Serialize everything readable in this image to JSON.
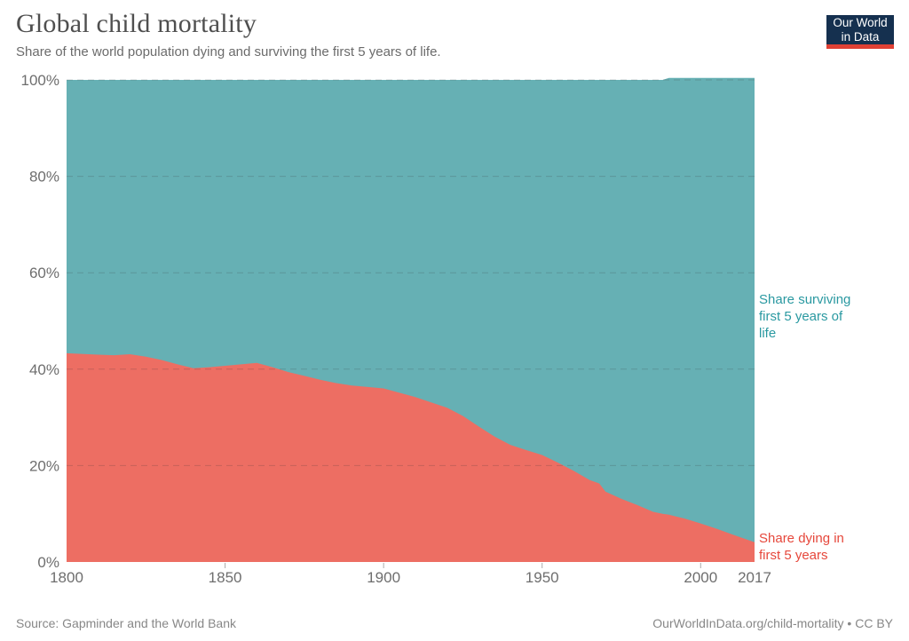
{
  "header": {
    "title": "Global child mortality",
    "subtitle": "Share of the world population dying and surviving the first 5 years of life."
  },
  "logo": {
    "line1": "Our World",
    "line2": "in Data",
    "bg_color": "#15304f",
    "bar_color": "#e04034"
  },
  "chart_data": {
    "type": "area",
    "stacked": true,
    "title": "Global child mortality",
    "xlabel": "",
    "ylabel": "",
    "xlim": [
      1800,
      2017
    ],
    "ylim": [
      0,
      100
    ],
    "grid": "dashed-horizontal",
    "legend_position": "right-annotations",
    "x": [
      1800,
      1810,
      1815,
      1820,
      1825,
      1830,
      1835,
      1840,
      1845,
      1850,
      1855,
      1860,
      1865,
      1870,
      1875,
      1880,
      1885,
      1890,
      1895,
      1900,
      1905,
      1910,
      1915,
      1920,
      1925,
      1930,
      1935,
      1940,
      1945,
      1950,
      1955,
      1960,
      1965,
      1968,
      1970,
      1975,
      1980,
      1985,
      1988,
      1990,
      1995,
      2000,
      2005,
      2010,
      2017
    ],
    "series": [
      {
        "name": "Share dying in first 5 years",
        "color": "#ed6e63",
        "label_color": "#e6473b",
        "values": [
          43.3,
          43.0,
          42.9,
          43.1,
          42.6,
          41.9,
          41.0,
          40.2,
          40.4,
          40.7,
          41.0,
          41.3,
          40.4,
          39.4,
          38.6,
          37.8,
          37.1,
          36.6,
          36.3,
          36.0,
          35.1,
          34.2,
          33.1,
          32.0,
          30.3,
          28.1,
          26.0,
          24.3,
          23.2,
          22.2,
          20.6,
          18.9,
          17.0,
          16.3,
          14.6,
          13.1,
          11.8,
          10.4,
          10.0,
          9.8,
          9.0,
          8.0,
          6.9,
          5.7,
          4.1
        ]
      },
      {
        "name": "Share surviving first 5 years of life",
        "color": "#66b0b4",
        "label_color": "#2a99a1",
        "values": [
          56.7,
          57.0,
          57.1,
          56.9,
          57.4,
          58.1,
          59.0,
          59.8,
          59.6,
          59.3,
          59.0,
          58.7,
          59.6,
          60.6,
          61.4,
          62.2,
          62.9,
          63.4,
          63.7,
          64.0,
          64.9,
          65.8,
          66.9,
          68.0,
          69.7,
          71.9,
          74.0,
          75.7,
          76.8,
          77.8,
          79.4,
          81.1,
          83.0,
          83.7,
          85.4,
          86.9,
          88.2,
          89.6,
          90.0,
          90.6,
          91.4,
          92.4,
          93.5,
          94.7,
          96.3
        ]
      }
    ],
    "x_tick_values": [
      1800,
      1850,
      1900,
      1950,
      2000,
      2017
    ],
    "x_tick_labels": [
      "1800",
      "1850",
      "1900",
      "1950",
      "2000",
      "2017"
    ],
    "x_ticks_with_marks": [
      1850,
      1900,
      1950,
      2000
    ],
    "y_tick_values": [
      0,
      20,
      40,
      60,
      80,
      100
    ],
    "y_tick_labels": [
      "0%",
      "20%",
      "40%",
      "60%",
      "80%",
      "100%"
    ]
  },
  "annotations": {
    "surviving": {
      "text": "Share surviving\nfirst 5 years of\nlife"
    },
    "dying": {
      "text": "Share dying in\nfirst 5 years"
    }
  },
  "footer": {
    "source": "Source: Gapminder and the World Bank",
    "credit": "OurWorldInData.org/child-mortality • CC BY"
  }
}
